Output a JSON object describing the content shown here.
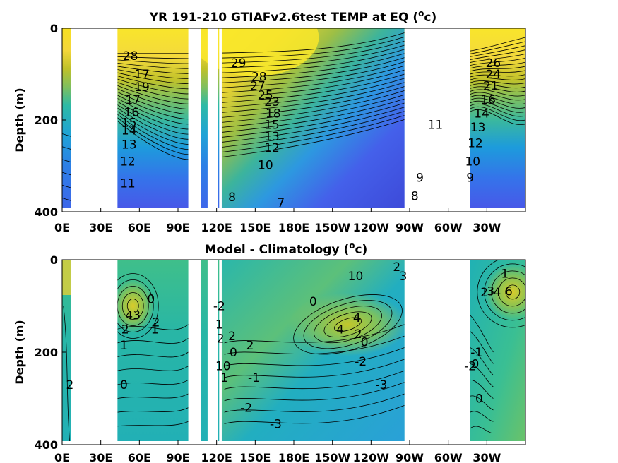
{
  "chart_data": [
    {
      "type": "heatmap",
      "title_main": "YR 191-210 GTIAFv2.6test TEMP at EQ (",
      "title_unit_sup": "o",
      "title_unit_end": "c)",
      "ylabel": "Depth (m)",
      "xlabel": "",
      "x_ticks": [
        "0E",
        "30E",
        "60E",
        "90E",
        "120E",
        "150E",
        "180E",
        "150W",
        "120W",
        "90W",
        "60W",
        "30W"
      ],
      "y_ticks": [
        "0",
        "200",
        "400"
      ],
      "ylim": [
        400,
        0
      ],
      "xlim": [
        0,
        360
      ],
      "x_ticks_lon": [
        0,
        30,
        60,
        90,
        120,
        150,
        180,
        210,
        240,
        270,
        300,
        330
      ],
      "y_ticks_depth": [
        0,
        200,
        400
      ],
      "land_gaps_lon": [
        [
          7,
          43
        ],
        [
          98,
          108
        ],
        [
          113,
          121
        ],
        [
          122,
          124
        ],
        [
          266,
          317
        ]
      ],
      "color_scale": "parula",
      "contour_labels": [
        {
          "text": "28",
          "lon": 53,
          "depth": 60
        },
        {
          "text": "17",
          "lon": 62,
          "depth": 100
        },
        {
          "text": "19",
          "lon": 62,
          "depth": 128
        },
        {
          "text": "17",
          "lon": 55,
          "depth": 155
        },
        {
          "text": "16",
          "lon": 54,
          "depth": 183
        },
        {
          "text": "15",
          "lon": 52,
          "depth": 205
        },
        {
          "text": "14",
          "lon": 52,
          "depth": 222
        },
        {
          "text": "13",
          "lon": 52,
          "depth": 253
        },
        {
          "text": "12",
          "lon": 51,
          "depth": 290
        },
        {
          "text": "11",
          "lon": 51,
          "depth": 338
        },
        {
          "text": "29",
          "lon": 137,
          "depth": 75
        },
        {
          "text": "28",
          "lon": 153,
          "depth": 105
        },
        {
          "text": "27",
          "lon": 152,
          "depth": 125
        },
        {
          "text": "25",
          "lon": 158,
          "depth": 145
        },
        {
          "text": "23",
          "lon": 163,
          "depth": 160
        },
        {
          "text": "18",
          "lon": 164,
          "depth": 185
        },
        {
          "text": "15",
          "lon": 163,
          "depth": 210
        },
        {
          "text": "13",
          "lon": 163,
          "depth": 235
        },
        {
          "text": "12",
          "lon": 163,
          "depth": 260
        },
        {
          "text": "10",
          "lon": 158,
          "depth": 298
        },
        {
          "text": "8",
          "lon": 132,
          "depth": 368
        },
        {
          "text": "7",
          "lon": 170,
          "depth": 380
        },
        {
          "text": "11",
          "lon": 290,
          "depth": 210
        },
        {
          "text": "9",
          "lon": 278,
          "depth": 325
        },
        {
          "text": "8",
          "lon": 274,
          "depth": 365
        },
        {
          "text": "26",
          "lon": 335,
          "depth": 75
        },
        {
          "text": "24",
          "lon": 335,
          "depth": 100
        },
        {
          "text": "21",
          "lon": 333,
          "depth": 125
        },
        {
          "text": "16",
          "lon": 331,
          "depth": 155
        },
        {
          "text": "14",
          "lon": 326,
          "depth": 185
        },
        {
          "text": "13",
          "lon": 323,
          "depth": 215
        },
        {
          "text": "12",
          "lon": 321,
          "depth": 250
        },
        {
          "text": "10",
          "lon": 319,
          "depth": 290
        },
        {
          "text": "9",
          "lon": 317,
          "depth": 325
        }
      ]
    },
    {
      "type": "heatmap",
      "title_main": "Model - Climatology (",
      "title_unit_sup": "o",
      "title_unit_end": "c)",
      "ylabel": "Depth (m)",
      "xlabel": "",
      "x_ticks": [
        "0E",
        "30E",
        "60E",
        "90E",
        "120E",
        "150E",
        "180E",
        "150W",
        "120W",
        "90W",
        "60W",
        "30W"
      ],
      "y_ticks": [
        "0",
        "200",
        "400"
      ],
      "ylim": [
        400,
        0
      ],
      "xlim": [
        0,
        360
      ],
      "x_ticks_lon": [
        0,
        30,
        60,
        90,
        120,
        150,
        180,
        210,
        240,
        270,
        300,
        330
      ],
      "y_ticks_depth": [
        0,
        200,
        400
      ],
      "land_gaps_lon": [
        [
          7,
          43
        ],
        [
          98,
          108
        ],
        [
          113,
          121
        ],
        [
          122,
          124
        ],
        [
          266,
          317
        ]
      ],
      "color_scale": "parula",
      "contour_labels": [
        {
          "text": "0",
          "lon": 69,
          "depth": 85
        },
        {
          "text": "43",
          "lon": 55,
          "depth": 120
        },
        {
          "text": "2",
          "lon": 73,
          "depth": 135
        },
        {
          "text": "1",
          "lon": 72,
          "depth": 150
        },
        {
          "text": "2",
          "lon": 49,
          "depth": 150
        },
        {
          "text": "1",
          "lon": 48,
          "depth": 185
        },
        {
          "text": "0",
          "lon": 48,
          "depth": 270
        },
        {
          "text": "2",
          "lon": 6,
          "depth": 270
        },
        {
          "text": "-2",
          "lon": 122,
          "depth": 100
        },
        {
          "text": "1",
          "lon": 122,
          "depth": 140
        },
        {
          "text": "2",
          "lon": 123,
          "depth": 170
        },
        {
          "text": "10",
          "lon": 125,
          "depth": 230
        },
        {
          "text": "1",
          "lon": 126,
          "depth": 255
        },
        {
          "text": "2",
          "lon": 132,
          "depth": 165
        },
        {
          "text": "0",
          "lon": 133,
          "depth": 200
        },
        {
          "text": "2",
          "lon": 146,
          "depth": 185
        },
        {
          "text": "-1",
          "lon": 149,
          "depth": 255
        },
        {
          "text": "-2",
          "lon": 143,
          "depth": 320
        },
        {
          "text": "-3",
          "lon": 166,
          "depth": 355
        },
        {
          "text": "0",
          "lon": 195,
          "depth": 90
        },
        {
          "text": "10",
          "lon": 228,
          "depth": 35
        },
        {
          "text": "4",
          "lon": 216,
          "depth": 150
        },
        {
          "text": "4",
          "lon": 229,
          "depth": 125
        },
        {
          "text": "2",
          "lon": 230,
          "depth": 160
        },
        {
          "text": "0",
          "lon": 235,
          "depth": 178
        },
        {
          "text": "-2",
          "lon": 232,
          "depth": 220
        },
        {
          "text": "-3",
          "lon": 248,
          "depth": 270
        },
        {
          "text": "2",
          "lon": 260,
          "depth": 15
        },
        {
          "text": "3",
          "lon": 265,
          "depth": 35
        },
        {
          "text": "1",
          "lon": 344,
          "depth": 30
        },
        {
          "text": "2",
          "lon": 328,
          "depth": 70
        },
        {
          "text": "3",
          "lon": 333,
          "depth": 68
        },
        {
          "text": "4",
          "lon": 338,
          "depth": 70
        },
        {
          "text": "6",
          "lon": 347,
          "depth": 68
        },
        {
          "text": "-2",
          "lon": 317,
          "depth": 230
        },
        {
          "text": "0",
          "lon": 321,
          "depth": 225
        },
        {
          "text": "-1",
          "lon": 322,
          "depth": 200
        },
        {
          "text": "0",
          "lon": 324,
          "depth": 300
        }
      ]
    }
  ]
}
